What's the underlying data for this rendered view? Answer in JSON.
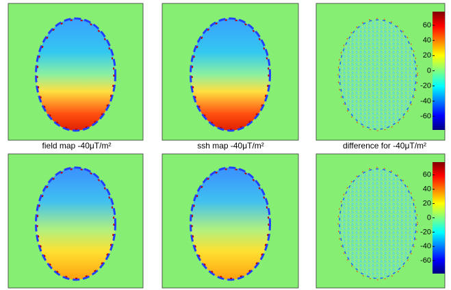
{
  "chart_data": [
    {
      "type": "image",
      "title": "field map -40μT/m²"
    },
    {
      "type": "image",
      "title": "ssh map -40μT/m²"
    },
    {
      "type": "image",
      "title": "difference for -40μT/m²",
      "colorbar": {
        "ylim": [
          -78,
          78
        ],
        "yticks": [
          60,
          40,
          20,
          0,
          -20,
          -40,
          -60
        ]
      }
    },
    {
      "type": "image"
    },
    {
      "type": "image"
    },
    {
      "type": "image",
      "colorbar": {
        "ylim": [
          -78,
          78
        ],
        "yticks": [
          60,
          40,
          20,
          0,
          -20,
          -40,
          -60
        ]
      }
    }
  ]
}
